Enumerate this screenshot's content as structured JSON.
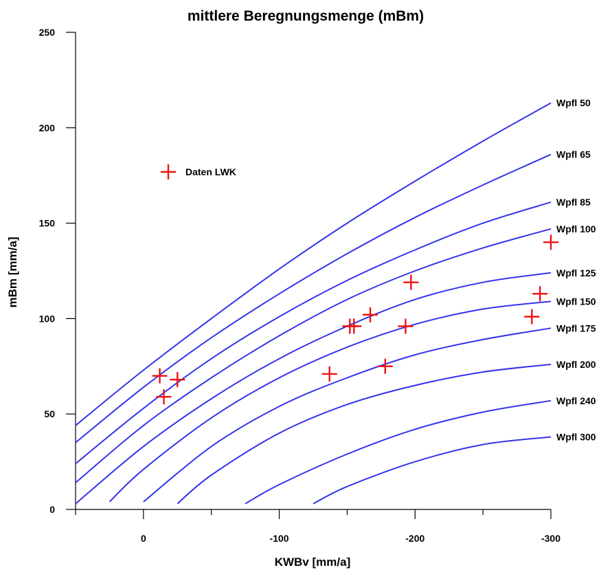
{
  "chart_data": {
    "type": "line",
    "title": "mittlere Beregnungsmenge (mBm)",
    "xlabel": "KWBv [mm/a]",
    "ylabel": "mBm [mm/a]",
    "xlim": [
      50,
      -300
    ],
    "ylim": [
      0,
      250
    ],
    "x_ticks": [
      0,
      -100,
      -200,
      -300
    ],
    "x_tick_labels": [
      "0",
      "-100",
      "-200",
      "-300"
    ],
    "x_minor_ticks": [
      50,
      -50,
      -150,
      -250
    ],
    "y_ticks": [
      0,
      50,
      100,
      150,
      200,
      250
    ],
    "y_tick_labels": [
      "0",
      "50",
      "100",
      "150",
      "200",
      "250"
    ],
    "grid": false,
    "colors": {
      "curves": "#3333ee",
      "data": "#ee1111",
      "axis": "#000000"
    },
    "series": [
      {
        "name": "Wpfl 50",
        "x": [
          50,
          0,
          -50,
          -100,
          -150,
          -200,
          -250,
          -300
        ],
        "y": [
          44,
          73,
          100,
          126,
          150,
          172,
          193,
          213
        ]
      },
      {
        "name": "Wpfl 65",
        "x": [
          50,
          0,
          -50,
          -100,
          -150,
          -200,
          -250,
          -300
        ],
        "y": [
          35,
          64,
          90,
          113,
          134,
          153,
          170,
          186
        ]
      },
      {
        "name": "Wpfl 85",
        "x": [
          50,
          0,
          -50,
          -100,
          -150,
          -200,
          -250,
          -300
        ],
        "y": [
          24,
          53,
          79,
          101,
          120,
          136,
          150,
          161
        ]
      },
      {
        "name": "Wpfl 100",
        "x": [
          50,
          0,
          -50,
          -100,
          -150,
          -200,
          -250,
          -300
        ],
        "y": [
          14,
          44,
          69,
          91,
          110,
          125,
          137,
          147
        ]
      },
      {
        "name": "Wpfl 125",
        "x": [
          50,
          0,
          -50,
          -100,
          -150,
          -200,
          -250,
          -300
        ],
        "y": [
          3,
          33,
          58,
          79,
          96,
          110,
          119,
          124
        ]
      },
      {
        "name": "Wpfl 150",
        "x": [
          25,
          0,
          -50,
          -100,
          -150,
          -200,
          -250,
          -300
        ],
        "y": [
          4,
          21,
          48,
          69,
          85,
          97,
          105,
          109
        ]
      },
      {
        "name": "Wpfl 175",
        "x": [
          0,
          -50,
          -100,
          -150,
          -200,
          -250,
          -300
        ],
        "y": [
          4,
          33,
          54,
          69,
          81,
          89,
          95
        ]
      },
      {
        "name": "Wpfl 200",
        "x": [
          -25,
          -50,
          -100,
          -150,
          -200,
          -250,
          -300
        ],
        "y": [
          3,
          18,
          40,
          55,
          65,
          72,
          76
        ]
      },
      {
        "name": "Wpfl 240",
        "x": [
          -75,
          -100,
          -150,
          -200,
          -250,
          -300
        ],
        "y": [
          3,
          13,
          29,
          42,
          51,
          57
        ]
      },
      {
        "name": "Wpfl 300",
        "x": [
          -125,
          -150,
          -200,
          -250,
          -300
        ],
        "y": [
          3,
          12,
          25,
          34,
          38
        ]
      }
    ],
    "scatter": {
      "name": "Daten LWK",
      "points": [
        {
          "x": -12,
          "y": 70
        },
        {
          "x": -15,
          "y": 59
        },
        {
          "x": -25,
          "y": 68
        },
        {
          "x": -137,
          "y": 71
        },
        {
          "x": -152,
          "y": 96
        },
        {
          "x": -155,
          "y": 96
        },
        {
          "x": -167,
          "y": 102
        },
        {
          "x": -178,
          "y": 75
        },
        {
          "x": -193,
          "y": 96
        },
        {
          "x": -197,
          "y": 119
        },
        {
          "x": -286,
          "y": 101
        },
        {
          "x": -292,
          "y": 113
        },
        {
          "x": -300,
          "y": 140
        }
      ]
    },
    "legend": {
      "position": "upper-left",
      "entries": [
        "Daten LWK"
      ]
    }
  }
}
